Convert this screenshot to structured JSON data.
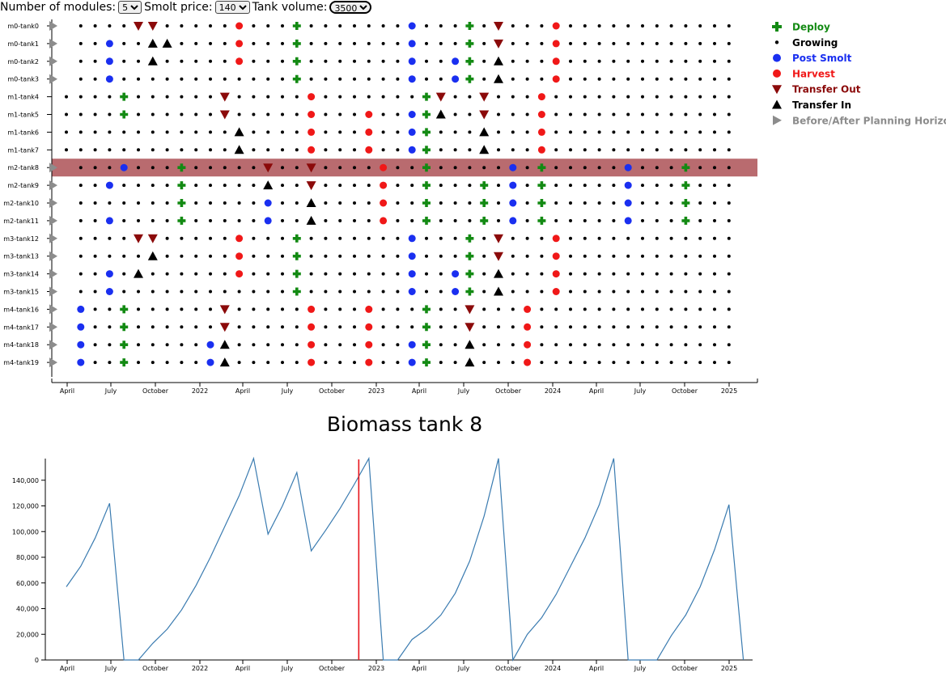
{
  "controls": {
    "modules_label": "Number of modules:",
    "modules_value": "5",
    "smolt_label": "Smolt price:",
    "smolt_value": "140",
    "volume_label": "Tank volume:",
    "volume_value": "3500"
  },
  "timeline": {
    "tanks": [
      "m0-tank0",
      "m0-tank1",
      "m0-tank2",
      "m0-tank3",
      "m1-tank4",
      "m1-tank5",
      "m1-tank6",
      "m1-tank7",
      "m2-tank8",
      "m2-tank9",
      "m2-tank10",
      "m2-tank11",
      "m3-tank12",
      "m3-tank13",
      "m3-tank14",
      "m3-tank15",
      "m4-tank16",
      "m4-tank17",
      "m4-tank18",
      "m4-tank19"
    ],
    "highlighted_tank": "m2-tank8",
    "highlight_color": "#b96b6f",
    "x_ticks": [
      "April",
      "July",
      "October",
      "2022",
      "April",
      "July",
      "October",
      "2023",
      "April",
      "July",
      "October",
      "2024",
      "April",
      "July",
      "October",
      "2025"
    ],
    "tank_events": [
      "FGGGGGGGGGGGHGGGDGGGGGGGPGGGDGGGGGGGGGGGGGGGGGGGGGDGGGGGGPGGGDGGG",
      "FGGPGGGIGGGGHGGGDGGGGGGGPGGGDGGGGGGGGGGGGGGGGGGGGGDGGGGGGPGGGDGGG",
      "FGGPGGIGGGGGHGGGDGGGGGGGPGGGDGGGGGGGGGGGGGGGGGGGGGDGGGGGGPGGGDGGG",
      "FGGPGGGGGGGGGGGGDGGGGGGGPGGGDGGGGGGGGGGGGGGGGGGGGGDGGGGGGPGGGDGGG",
      "GGGGDGGGGGGGGGGGGGGGGGGGGDGGGGGGGGGGGGGGGGGGGGGGGGDGGGGGGPGGGDGGG",
      "GGGGDGGGGGGGGGGGGGGGGHGGGDGGGGGGGGGGGGGGGGGGGGGGGGDGGGGGGPGGGDGGG",
      "GGGGGGGGGGGGIGGGGGGGGHGGGDGGGGGGGGGGGGGGGGGGGGGGGGDGGGGGGPGGGDGGG",
      "GGGGGGGGGGGGIGGGGGGGGHGGGDGGGGGGGGGGGGGGGGGGGGGGGGDGGGGGGPGGGDGGG",
      "FGGGPGGGDGGGGGGGGGGGGGGGGGGGGGGGGGGGGGGGGGGGGGGGGGGGGGGGGGGGGGGGG",
      "FGGPGGGGDGGGGGPGGGGGGGGGGGGGGDGGGGGGGGGGGGGGGGGGGGGGGGGGGGGGGGGGG",
      "FGGGGGGGDGGGGGPGGGGGGGGGGGGGGDGGGGGGGGGGGGGGGGGGGGGGGGGGGGGGGGGGG",
      "FGGPGGGGDGGGGGPGGGGGGGGGGGGGGDGGGGGGGGGGGGGGGGGGGGGGGGGGGGGGGGGGG",
      "FGGGGGGGGGGGHGGGDGGGGGGGPGGGDGGGGGGGGGGGGGGGGGGGGGDGGGGGGPGGGDGGG",
      "FGGGGGGGGGGGHGGGDGGGGGGGPGGGDGGGGGGGGGGGGGGGGGGGGGDGGGGGGPGGGDGGG",
      "FGGPGGGGGGGGHGGGDGGGGGGGPGGGDGGGGGGGGGGGGGGGGGGGGGDGGGGGGPGGGDGGG",
      "FGGPGGGGGGGGGGGGDGGGGGGGPGGGDGGGGGGGGGGGGGGGGGGGGGDGGGGGGPGGGDGGG",
      "FPGGDGGGGGGGGGGGGGGGGHGGGDGGGGGGGGGGGGGGGGGGGGGGGGDGGGGGGPGGGDGGG",
      "FPGGDGGGGGGGGGGGGGGGGHGGGDGGGGGGGGGGGGGGGGGGGGGGGGDGGGGGGPGGGDGGG",
      "FPGGDGGGGGPGGGGGGGGGGHGGGDGGGGGGGGGGGGGGGGGGGGGGGGDGGGGGGPGGGDGGG",
      "FPGGDGGGGGPGGGGGGGGGGHGGGDGGGGGGGGGGGGGGGGGGGGGGGGDGGGGGGPGGGDGGG"
    ],
    "overrides": [
      {
        "row": 0,
        "col": 5,
        "e": "O"
      },
      {
        "row": 0,
        "col": 6,
        "e": "O"
      },
      {
        "row": 0,
        "col": 30,
        "e": "O"
      },
      {
        "row": 0,
        "col": 34,
        "e": "H"
      },
      {
        "row": 1,
        "col": 6,
        "e": "I"
      },
      {
        "row": 1,
        "col": 30,
        "e": "O"
      },
      {
        "row": 1,
        "col": 34,
        "e": "H"
      },
      {
        "row": 2,
        "col": 30,
        "e": "I"
      },
      {
        "row": 2,
        "col": 34,
        "e": "H"
      },
      {
        "row": 2,
        "col": 27,
        "e": "P"
      },
      {
        "row": 3,
        "col": 30,
        "e": "I"
      },
      {
        "row": 3,
        "col": 34,
        "e": "H"
      },
      {
        "row": 3,
        "col": 27,
        "e": "P"
      },
      {
        "row": 4,
        "col": 11,
        "e": "O"
      },
      {
        "row": 4,
        "col": 17,
        "e": "H"
      },
      {
        "row": 4,
        "col": 26,
        "e": "O"
      },
      {
        "row": 4,
        "col": 29,
        "e": "O"
      },
      {
        "row": 4,
        "col": 33,
        "e": "H"
      },
      {
        "row": 5,
        "col": 11,
        "e": "O"
      },
      {
        "row": 5,
        "col": 17,
        "e": "H"
      },
      {
        "row": 5,
        "col": 24,
        "e": "P"
      },
      {
        "row": 5,
        "col": 26,
        "e": "I"
      },
      {
        "row": 5,
        "col": 29,
        "e": "O"
      },
      {
        "row": 5,
        "col": 33,
        "e": "H"
      },
      {
        "row": 6,
        "col": 17,
        "e": "H"
      },
      {
        "row": 6,
        "col": 24,
        "e": "P"
      },
      {
        "row": 6,
        "col": 29,
        "e": "I"
      },
      {
        "row": 6,
        "col": 33,
        "e": "H"
      },
      {
        "row": 7,
        "col": 17,
        "e": "H"
      },
      {
        "row": 7,
        "col": 24,
        "e": "P"
      },
      {
        "row": 7,
        "col": 29,
        "e": "I"
      },
      {
        "row": 7,
        "col": 33,
        "e": "H"
      },
      {
        "row": 8,
        "col": 14,
        "e": "O"
      },
      {
        "row": 8,
        "col": 17,
        "e": "O"
      },
      {
        "row": 8,
        "col": 22,
        "e": "H"
      },
      {
        "row": 8,
        "col": 25,
        "e": "D"
      },
      {
        "row": 8,
        "col": 31,
        "e": "P"
      },
      {
        "row": 8,
        "col": 33,
        "e": "D"
      },
      {
        "row": 8,
        "col": 39,
        "e": "P"
      },
      {
        "row": 8,
        "col": 43,
        "e": "D"
      },
      {
        "row": 9,
        "col": 14,
        "e": "I"
      },
      {
        "row": 9,
        "col": 17,
        "e": "O"
      },
      {
        "row": 9,
        "col": 22,
        "e": "H"
      },
      {
        "row": 9,
        "col": 25,
        "e": "D"
      },
      {
        "row": 9,
        "col": 31,
        "e": "P"
      },
      {
        "row": 9,
        "col": 33,
        "e": "D"
      },
      {
        "row": 9,
        "col": 39,
        "e": "P"
      },
      {
        "row": 9,
        "col": 43,
        "e": "D"
      },
      {
        "row": 10,
        "col": 17,
        "e": "I"
      },
      {
        "row": 10,
        "col": 22,
        "e": "H"
      },
      {
        "row": 10,
        "col": 25,
        "e": "D"
      },
      {
        "row": 10,
        "col": 31,
        "e": "P"
      },
      {
        "row": 10,
        "col": 33,
        "e": "D"
      },
      {
        "row": 10,
        "col": 39,
        "e": "P"
      },
      {
        "row": 10,
        "col": 43,
        "e": "D"
      },
      {
        "row": 11,
        "col": 17,
        "e": "I"
      },
      {
        "row": 11,
        "col": 22,
        "e": "H"
      },
      {
        "row": 11,
        "col": 25,
        "e": "D"
      },
      {
        "row": 11,
        "col": 31,
        "e": "P"
      },
      {
        "row": 11,
        "col": 33,
        "e": "D"
      },
      {
        "row": 11,
        "col": 39,
        "e": "P"
      },
      {
        "row": 11,
        "col": 43,
        "e": "D"
      },
      {
        "row": 12,
        "col": 5,
        "e": "O"
      },
      {
        "row": 12,
        "col": 6,
        "e": "O"
      },
      {
        "row": 12,
        "col": 30,
        "e": "O"
      },
      {
        "row": 12,
        "col": 34,
        "e": "H"
      },
      {
        "row": 13,
        "col": 6,
        "e": "I"
      },
      {
        "row": 13,
        "col": 30,
        "e": "O"
      },
      {
        "row": 13,
        "col": 34,
        "e": "H"
      },
      {
        "row": 14,
        "col": 5,
        "e": "I"
      },
      {
        "row": 14,
        "col": 27,
        "e": "P"
      },
      {
        "row": 14,
        "col": 30,
        "e": "I"
      },
      {
        "row": 14,
        "col": 34,
        "e": "H"
      },
      {
        "row": 15,
        "col": 27,
        "e": "P"
      },
      {
        "row": 15,
        "col": 30,
        "e": "I"
      },
      {
        "row": 15,
        "col": 34,
        "e": "H"
      },
      {
        "row": 16,
        "col": 11,
        "e": "O"
      },
      {
        "row": 16,
        "col": 17,
        "e": "H"
      },
      {
        "row": 16,
        "col": 28,
        "e": "O"
      },
      {
        "row": 16,
        "col": 32,
        "e": "H"
      },
      {
        "row": 17,
        "col": 11,
        "e": "O"
      },
      {
        "row": 17,
        "col": 17,
        "e": "H"
      },
      {
        "row": 17,
        "col": 28,
        "e": "O"
      },
      {
        "row": 17,
        "col": 32,
        "e": "H"
      },
      {
        "row": 18,
        "col": 11,
        "e": "I"
      },
      {
        "row": 18,
        "col": 17,
        "e": "H"
      },
      {
        "row": 18,
        "col": 24,
        "e": "P"
      },
      {
        "row": 18,
        "col": 28,
        "e": "I"
      },
      {
        "row": 18,
        "col": 32,
        "e": "H"
      },
      {
        "row": 19,
        "col": 11,
        "e": "I"
      },
      {
        "row": 19,
        "col": 17,
        "e": "H"
      },
      {
        "row": 19,
        "col": 24,
        "e": "P"
      },
      {
        "row": 19,
        "col": 28,
        "e": "I"
      },
      {
        "row": 19,
        "col": 32,
        "e": "H"
      }
    ]
  },
  "legend": [
    {
      "label": "Deploy",
      "color": "#138a13",
      "symbol": "plus"
    },
    {
      "label": "Growing",
      "color": "#000000",
      "symbol": "dot"
    },
    {
      "label": "Post Smolt",
      "color": "#1a2ff0",
      "symbol": "circle"
    },
    {
      "label": "Harvest",
      "color": "#f01818",
      "symbol": "circle"
    },
    {
      "label": "Transfer Out",
      "color": "#8b0a0a",
      "symbol": "tri-down"
    },
    {
      "label": "Transfer In",
      "color": "#000000",
      "symbol": "tri-up"
    },
    {
      "label": "Before/After Planning Horizon",
      "color": "#8c8c8c",
      "symbol": "tri-right"
    }
  ],
  "biomass": {
    "title": "Biomass tank 8",
    "line_color": "#3a7bb0",
    "marker_color": "#e8141a",
    "marker_x": 20.3
  },
  "chart_data": [
    {
      "type": "scatter",
      "title": "",
      "x_ticks": [
        "April",
        "July",
        "October",
        "2022",
        "April",
        "July",
        "October",
        "2023",
        "April",
        "July",
        "October",
        "2024",
        "April",
        "July",
        "October",
        "2025"
      ]
    },
    {
      "type": "line",
      "title": "Biomass tank 8",
      "xlabel": "",
      "ylabel": "",
      "ylim": [
        0,
        160000
      ],
      "y_ticks": [
        "0",
        "20,000",
        "40,000",
        "60,000",
        "80,000",
        "100,000",
        "120,000",
        "140,000"
      ],
      "x_ticks": [
        "April",
        "July",
        "October",
        "2022",
        "April",
        "July",
        "October",
        "2023",
        "April",
        "July",
        "October",
        "2024",
        "April",
        "July",
        "October",
        "2025"
      ],
      "x": [
        0,
        1,
        2,
        3,
        4,
        5,
        6,
        7,
        8,
        9,
        10,
        11,
        12,
        13,
        14,
        15,
        16,
        17,
        18,
        19,
        20,
        21,
        22,
        23,
        24,
        25,
        26,
        27,
        28,
        29,
        30,
        31,
        32,
        33,
        34,
        35,
        36,
        37,
        38,
        39,
        40,
        41,
        42,
        43,
        44,
        45,
        46,
        47
      ],
      "values": [
        57000,
        73000,
        95000,
        122000,
        0,
        0,
        13000,
        24000,
        39000,
        58000,
        80000,
        104000,
        128000,
        157000,
        98000,
        120000,
        146000,
        85000,
        101000,
        118000,
        137000,
        157000,
        0,
        0,
        16000,
        24000,
        35000,
        52000,
        77000,
        112000,
        157000,
        0,
        20000,
        33000,
        51000,
        73000,
        95000,
        121000,
        157000,
        0,
        0,
        0,
        19000,
        35000,
        57000,
        86000,
        121000,
        0
      ]
    }
  ]
}
